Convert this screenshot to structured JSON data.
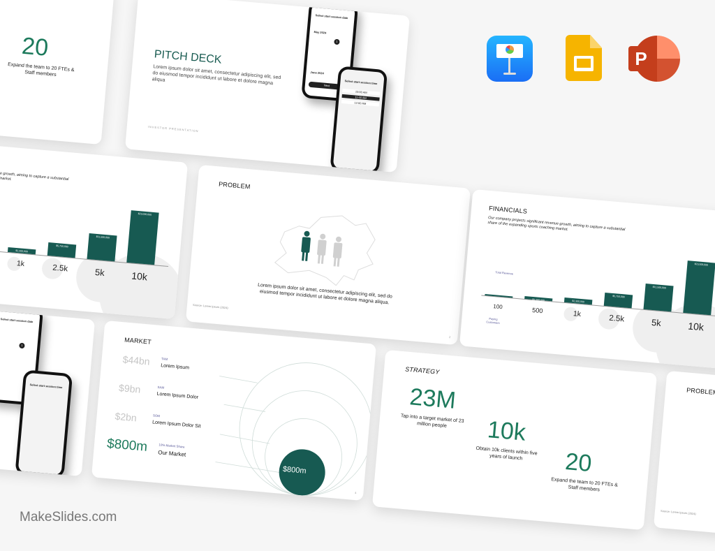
{
  "brand": {
    "watermark": "MakeSlides.com"
  },
  "apps": [
    {
      "name": "keynote-icon"
    },
    {
      "name": "google-slides-icon"
    },
    {
      "name": "powerpoint-icon",
      "letter": "P"
    }
  ],
  "colors": {
    "primary": "#175a52",
    "accent": "#1d7a5c",
    "muted_number": "#c5c5c5"
  },
  "strategy": {
    "title": "STRATEGY",
    "stats": [
      {
        "value": "23M",
        "text": "Tap into a target market of 23 million people"
      },
      {
        "value": "10k",
        "text": "Obtain 10k clients within five years of launch"
      },
      {
        "value": "20",
        "text": "Expand the team to 20 FTEs & Staff members"
      }
    ]
  },
  "pitch": {
    "title": "PITCH DECK",
    "body": "Lorem ipsum dolor sit amet, consectetur adipiscing elit, sed do eiusmod tempor incididunt ut labore et dolore magna aliqua",
    "footer": "INVESTOR  PRESENTATION",
    "phone1": {
      "heading": "Select start session date",
      "months": [
        "May 2024",
        "June 2024"
      ],
      "selected_day": "1",
      "button": "Next"
    },
    "phone2": {
      "heading": "Select start session time",
      "times": [
        "10:00 AM",
        "11:00 AM",
        "12:00 AM"
      ]
    }
  },
  "problem": {
    "title": "PROBLEM",
    "body": "Lorem ipsum dolor sit amet, consectetur adipiscing elit, sed do eiusmod tempor incididunt ut labore et dolore magna aliqua.",
    "source": "Source: Lorem Ipsum (2024)",
    "page": "2"
  },
  "financials": {
    "title": "FINANCIALS",
    "body": "Our company projects significant revenue growth, aiming to capture a substantial share of the expanding sports coaching market.",
    "revenue_label": "Total Revenue",
    "customers_label": "Paying Customers",
    "chart_data": {
      "type": "bar",
      "categories": [
        "100",
        "500",
        "1k",
        "2.5k",
        "5k",
        "10k"
      ],
      "values": [
        230000,
        1150000,
        2300000,
        5750000,
        11500000,
        23000000
      ],
      "data_labels": [
        "",
        "$1,150,000",
        "$2,300,000",
        "$5,750,000",
        "$11,500,000",
        "$23,000,000"
      ]
    }
  },
  "market": {
    "title": "MARKET",
    "rows": [
      {
        "value": "$44bn",
        "tag": "TAM",
        "label": "Lorem Ipsum"
      },
      {
        "value": "$9bn",
        "tag": "SAM",
        "label": "Lorem Ipsum Dolor"
      },
      {
        "value": "$2bn",
        "tag": "SOM",
        "label": "Lorem Ipsum Dolor Sit"
      },
      {
        "value": "$800m",
        "tag": "10% Market Share",
        "label": "Our Market"
      }
    ],
    "circle_label": "$800m",
    "page": "4"
  }
}
